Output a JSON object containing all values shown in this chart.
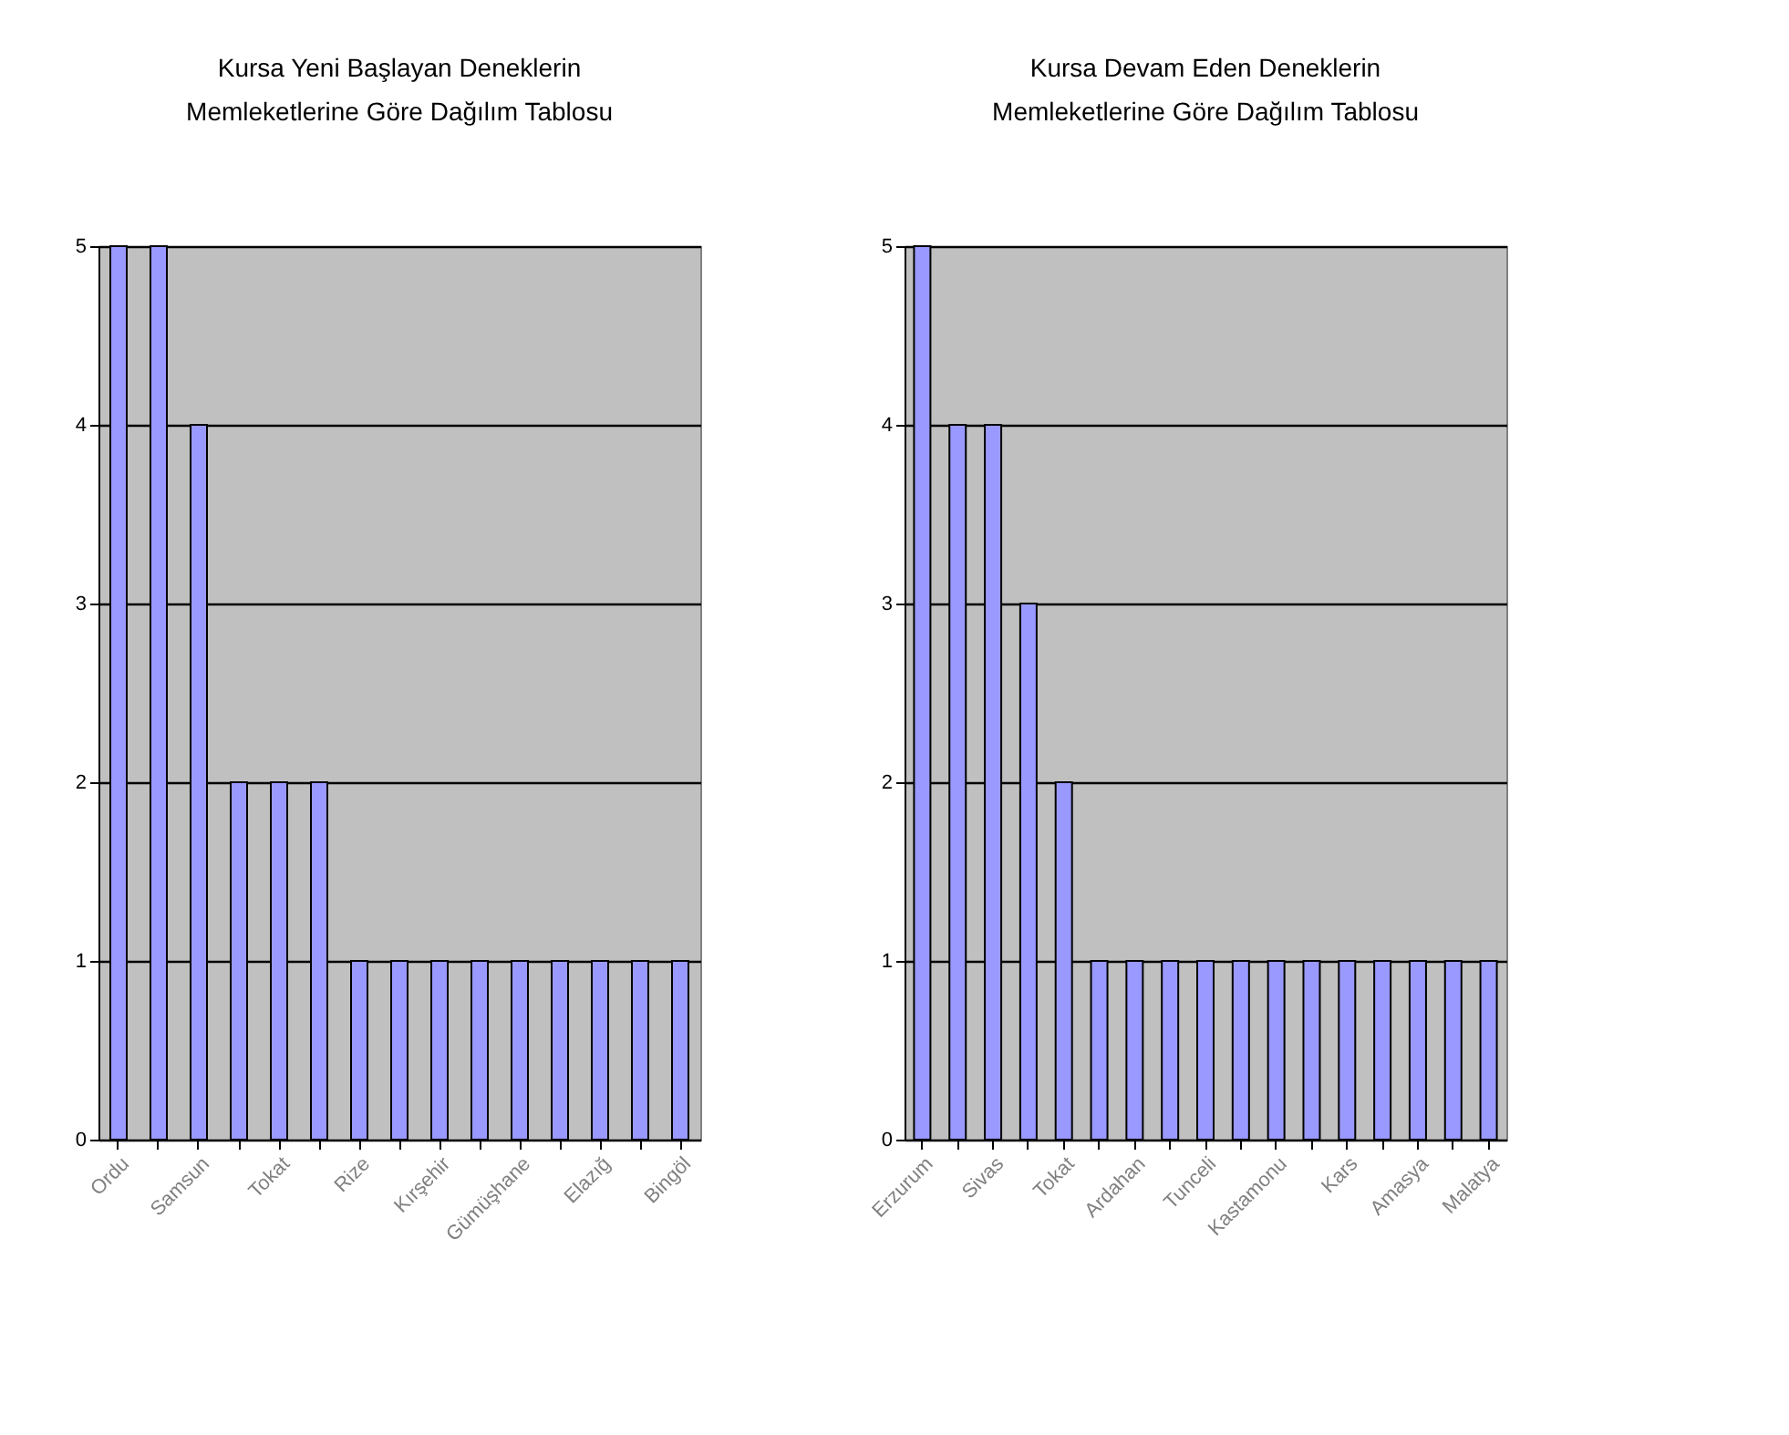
{
  "chart_data": [
    {
      "type": "bar",
      "title": "Kursa Yeni Başlayan Deneklerin Memleketlerine Göre Dağılım Tablosu",
      "categories": [
        "Ordu",
        null,
        "Samsun",
        null,
        "Tokat",
        null,
        "Rize",
        null,
        "Kırşehir",
        null,
        "Gümüşhane",
        null,
        "Elazığ",
        null,
        "Bingöl"
      ],
      "values": [
        5,
        5,
        4,
        2,
        2,
        2,
        1,
        1,
        1,
        1,
        1,
        1,
        1,
        1,
        1
      ],
      "color": "#9999ff",
      "ylim": [
        0,
        5
      ],
      "yticks": [
        0,
        1,
        2,
        3,
        4,
        5
      ],
      "grid": "y"
    },
    {
      "type": "bar",
      "title": "Kursa Devam Eden Deneklerin Memleketlerine Göre Dağılım Tablosu",
      "categories": [
        "Erzurum",
        null,
        "Sivas",
        null,
        "Tokat",
        null,
        "Ardahan",
        null,
        "Tunceli",
        null,
        "Kastamonu",
        null,
        "Kars",
        null,
        "Amasya",
        null,
        "Malatya"
      ],
      "values": [
        5,
        4,
        4,
        3,
        2,
        1,
        1,
        1,
        1,
        1,
        1,
        1,
        1,
        1,
        1,
        1,
        1
      ],
      "color": "#9999ff",
      "ylim": [
        0,
        5
      ],
      "yticks": [
        0,
        1,
        2,
        3,
        4,
        5
      ],
      "grid": "y"
    }
  ]
}
